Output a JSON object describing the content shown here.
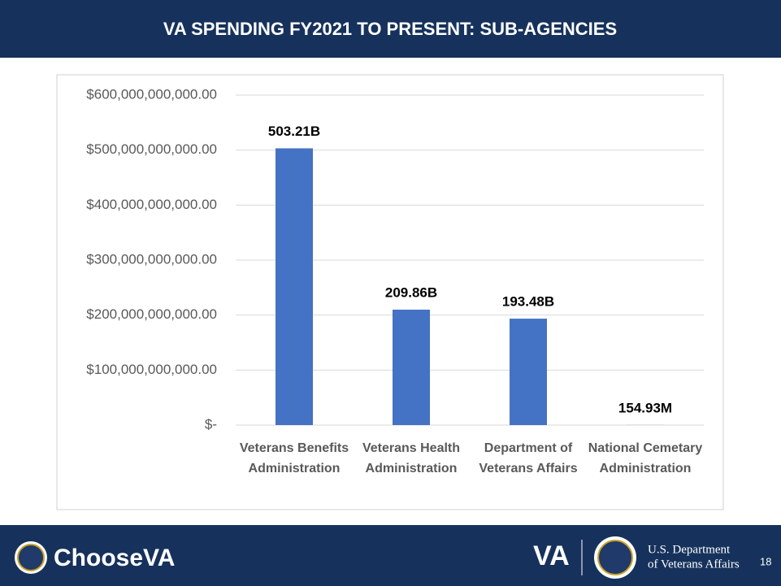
{
  "chart_data": {
    "type": "bar",
    "title": "VA SPENDING FY2021 TO PRESENT: SUB-AGENCIES",
    "categories": [
      "Veterans Benefits Administration",
      "Veterans Health Administration",
      "Department of Veterans Affairs",
      "National Cemetary Administration"
    ],
    "values": [
      503210000000,
      209860000000,
      193480000000,
      154930000
    ],
    "value_labels": [
      "503.21B",
      "209.86B",
      "193.48B",
      "154.93M"
    ],
    "color": "#4472c4",
    "ylim": [
      0,
      600000000000
    ],
    "yticks": [
      {
        "value": 0,
        "label": "$-"
      },
      {
        "value": 100000000000,
        "label": "$100,000,000,000.00"
      },
      {
        "value": 200000000000,
        "label": "$200,000,000,000.00"
      },
      {
        "value": 300000000000,
        "label": "$300,000,000,000.00"
      },
      {
        "value": 400000000000,
        "label": "$400,000,000,000.00"
      },
      {
        "value": 500000000000,
        "label": "$500,000,000,000.00"
      },
      {
        "value": 600000000000,
        "label": "$600,000,000,000.00"
      }
    ],
    "grid": true
  },
  "footer": {
    "brand": "ChooseVA",
    "logo": "VA",
    "department": [
      "U.S. Department",
      "of Veterans Affairs"
    ],
    "page": "18"
  }
}
